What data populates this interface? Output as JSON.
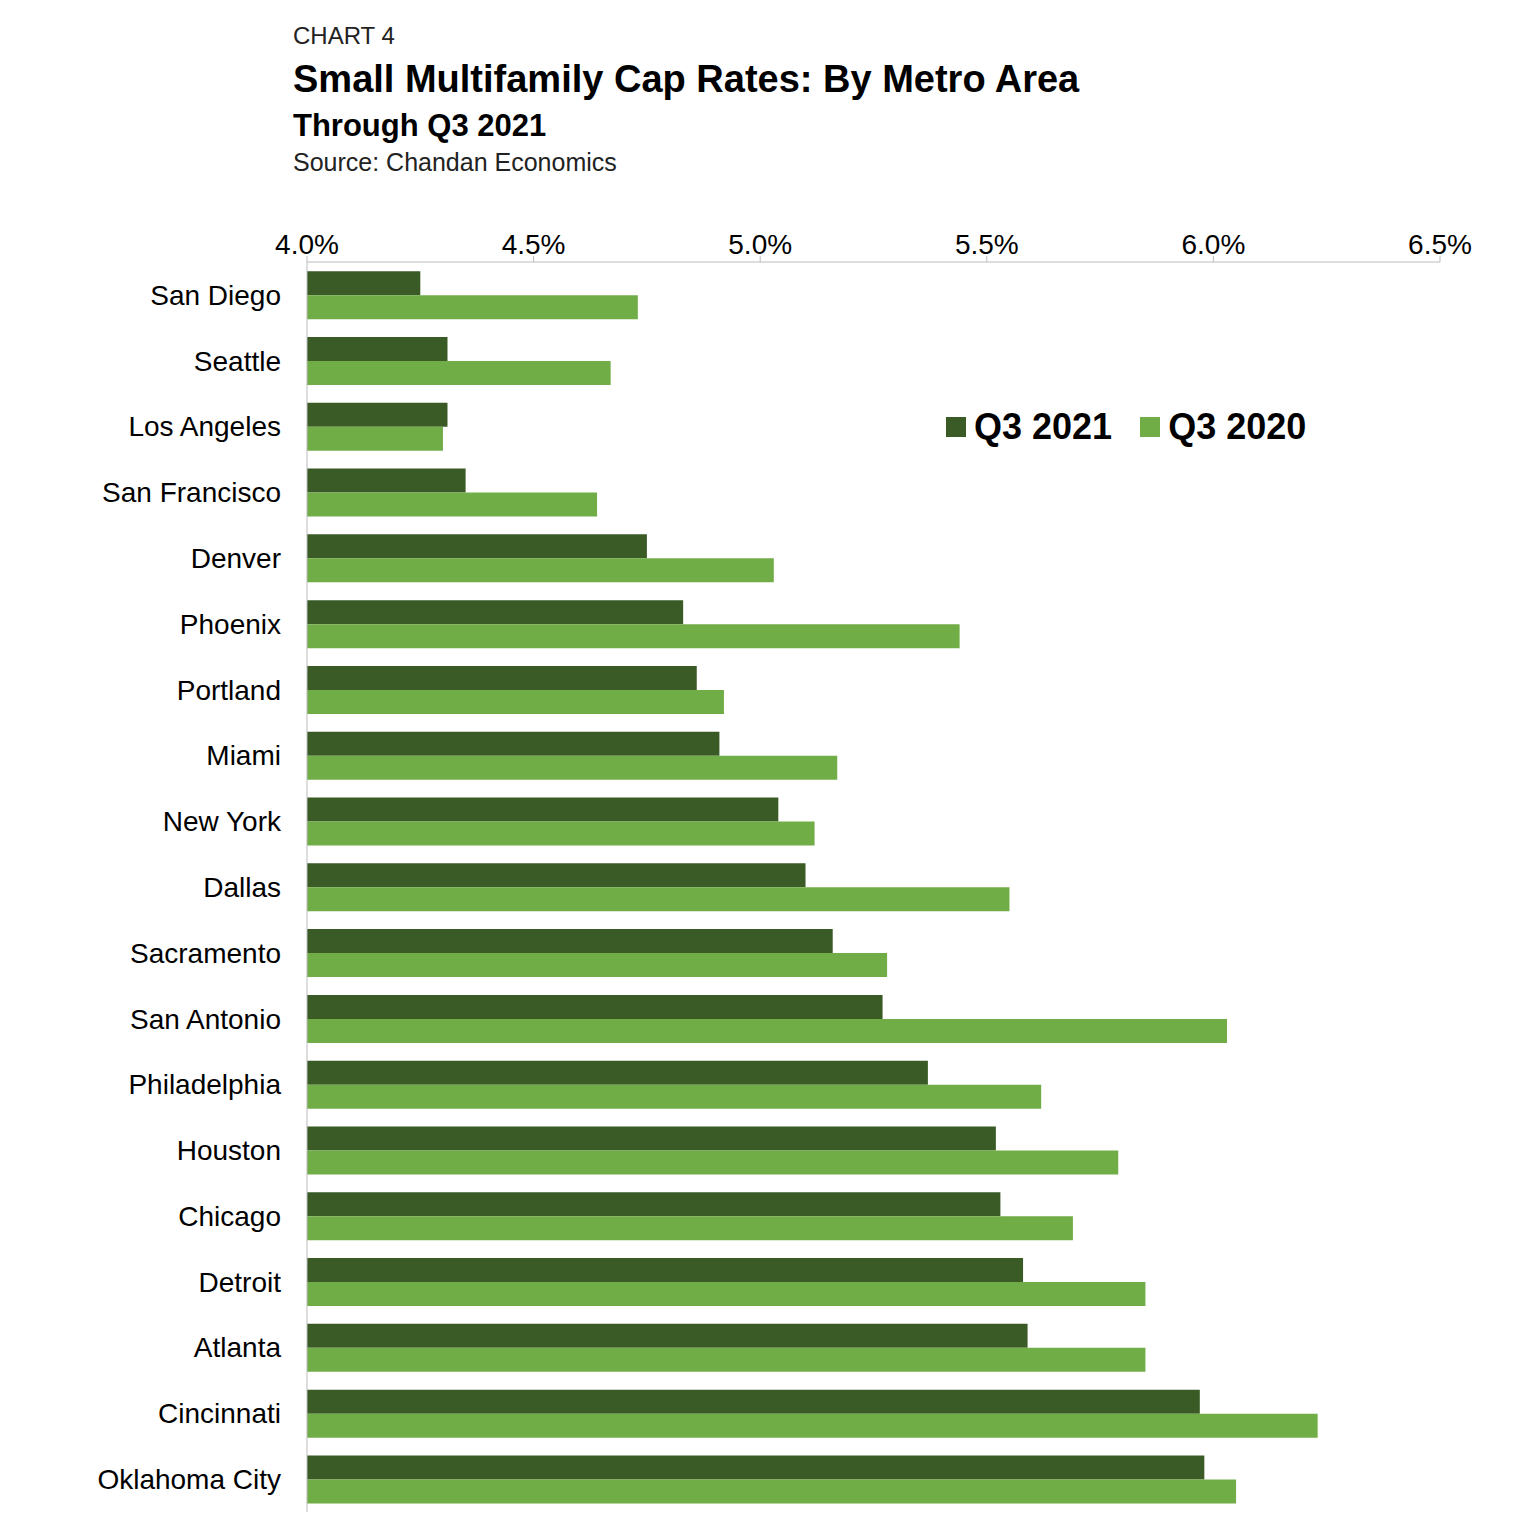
{
  "chart_data": {
    "type": "bar",
    "orientation": "horizontal",
    "chart_label": "CHART 4",
    "title": "Small Multifamily Cap Rates: By Metro Area",
    "subtitle": "Through Q3 2021",
    "source": "Source: Chandan Economics",
    "categories": [
      "San Diego",
      "Seattle",
      "Los Angeles",
      "San Francisco",
      "Denver",
      "Phoenix",
      "Portland",
      "Miami",
      "New York",
      "Dallas",
      "Sacramento",
      "San Antonio",
      "Philadelphia",
      "Houston",
      "Chicago",
      "Detroit",
      "Atlanta",
      "Cincinnati",
      "Oklahoma City"
    ],
    "series": [
      {
        "name": "Q3 2021",
        "color": "#3a5a26",
        "values": [
          4.25,
          4.31,
          4.31,
          4.35,
          4.75,
          4.83,
          4.86,
          4.91,
          5.04,
          5.1,
          5.16,
          5.27,
          5.37,
          5.52,
          5.53,
          5.58,
          5.59,
          5.97,
          5.98
        ]
      },
      {
        "name": "Q3 2020",
        "color": "#70ad47",
        "values": [
          4.73,
          4.67,
          4.3,
          4.64,
          5.03,
          5.44,
          4.92,
          5.17,
          5.12,
          5.55,
          5.28,
          6.03,
          5.62,
          5.79,
          5.69,
          5.85,
          5.85,
          6.23,
          6.05
        ]
      }
    ],
    "xlim": [
      4,
      6.5
    ],
    "xticks": [
      {
        "value": 4,
        "label": "4.0%"
      },
      {
        "value": 4.5,
        "label": "4.5%"
      },
      {
        "value": 5,
        "label": "5.0%"
      },
      {
        "value": 5.5,
        "label": "5.5%"
      },
      {
        "value": 6,
        "label": "6.0%"
      },
      {
        "value": 6.5,
        "label": "6.5%"
      }
    ],
    "grid": false,
    "legend": "upper right"
  }
}
